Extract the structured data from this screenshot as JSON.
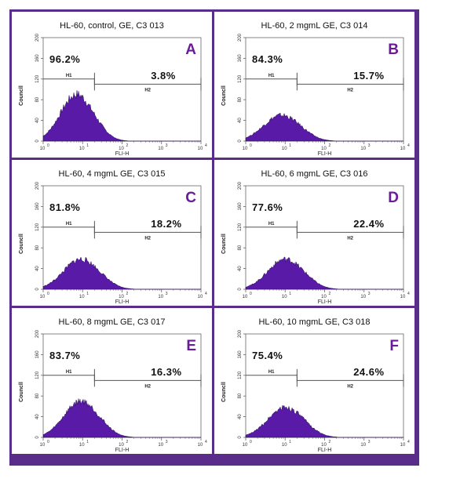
{
  "chart_data": [
    {
      "id": "A",
      "type": "area",
      "title": "HL-60, control, GE, C3 013",
      "letter": "A",
      "xlabel": "FLI-H",
      "ylabel": "Councll",
      "xscale": "log",
      "xlim": [
        1,
        10000
      ],
      "ylim": [
        0,
        200
      ],
      "x_ticks": [
        "10",
        "1",
        "10",
        "1",
        "10",
        "2",
        "10",
        "3",
        "10",
        "4"
      ],
      "y_ticks": [
        "0",
        "40",
        "80",
        "120",
        "160",
        "200"
      ],
      "gates": [
        {
          "name": "H1",
          "percent": "96.2%",
          "range": [
            1,
            20
          ]
        },
        {
          "name": "H2",
          "percent": "3.8%",
          "range": [
            20,
            10000
          ]
        }
      ],
      "peak": {
        "x": 7,
        "y": 90
      }
    },
    {
      "id": "B",
      "type": "area",
      "title": "HL-60, 2 mgmL GE, C3 014",
      "letter": "B",
      "xlabel": "FLI-H",
      "ylabel": "Councll",
      "xscale": "log",
      "xlim": [
        1,
        10000
      ],
      "ylim": [
        0,
        200
      ],
      "y_ticks": [
        "0",
        "40",
        "80",
        "120",
        "160",
        "200"
      ],
      "gates": [
        {
          "name": "H1",
          "percent": "84.3%",
          "range": [
            1,
            20
          ]
        },
        {
          "name": "H2",
          "percent": "15.7%",
          "range": [
            20,
            10000
          ]
        }
      ],
      "peak": {
        "x": 8,
        "y": 50
      }
    },
    {
      "id": "C",
      "type": "area",
      "title": "HL-60, 4 mgmL GE, C3 015",
      "letter": "C",
      "xlabel": "FLI-H",
      "ylabel": "Councll",
      "xscale": "log",
      "xlim": [
        1,
        10000
      ],
      "ylim": [
        0,
        200
      ],
      "y_ticks": [
        "0",
        "40",
        "80",
        "120",
        "160",
        "200"
      ],
      "gates": [
        {
          "name": "H1",
          "percent": "81.8%",
          "range": [
            1,
            20
          ]
        },
        {
          "name": "H2",
          "percent": "18.2%",
          "range": [
            20,
            10000
          ]
        }
      ],
      "peak": {
        "x": 9,
        "y": 58
      }
    },
    {
      "id": "D",
      "type": "area",
      "title": "HL-60, 6 mgmL GE, C3 016",
      "letter": "D",
      "xlabel": "FLI-H",
      "ylabel": "Councll",
      "xscale": "log",
      "xlim": [
        1,
        10000
      ],
      "ylim": [
        0,
        200
      ],
      "y_ticks": [
        "0",
        "40",
        "80",
        "120",
        "160",
        "200"
      ],
      "gates": [
        {
          "name": "H1",
          "percent": "77.6%",
          "range": [
            1,
            20
          ]
        },
        {
          "name": "H2",
          "percent": "22.4%",
          "range": [
            20,
            10000
          ]
        }
      ],
      "peak": {
        "x": 10,
        "y": 58
      }
    },
    {
      "id": "E",
      "type": "area",
      "title": "HL-60, 8 mgmL GE, C3 017",
      "letter": "E",
      "xlabel": "FLI-H",
      "ylabel": "Councll",
      "xscale": "log",
      "xlim": [
        1,
        10000
      ],
      "ylim": [
        0,
        200
      ],
      "y_ticks": [
        "0",
        "40",
        "80",
        "120",
        "160",
        "200"
      ],
      "gates": [
        {
          "name": "H1",
          "percent": "83.7%",
          "range": [
            1,
            20
          ]
        },
        {
          "name": "H2",
          "percent": "16.3%",
          "range": [
            20,
            10000
          ]
        }
      ],
      "peak": {
        "x": 9,
        "y": 70
      }
    },
    {
      "id": "F",
      "type": "area",
      "title": "HL-60, 10 mgmL GE, C3 018",
      "letter": "F",
      "xlabel": "FLI-H",
      "ylabel": "Councll",
      "xscale": "log",
      "xlim": [
        1,
        10000
      ],
      "ylim": [
        0,
        200
      ],
      "y_ticks": [
        "0",
        "40",
        "80",
        "120",
        "160",
        "200"
      ],
      "gates": [
        {
          "name": "H1",
          "percent": "75.4%",
          "range": [
            1,
            20
          ]
        },
        {
          "name": "H2",
          "percent": "24.6%",
          "range": [
            20,
            10000
          ]
        }
      ],
      "peak": {
        "x": 10,
        "y": 58
      }
    }
  ],
  "colors": {
    "frame": "#5b2d8a",
    "fill": "#5a1aa8",
    "letter": "#6a1b9a"
  }
}
